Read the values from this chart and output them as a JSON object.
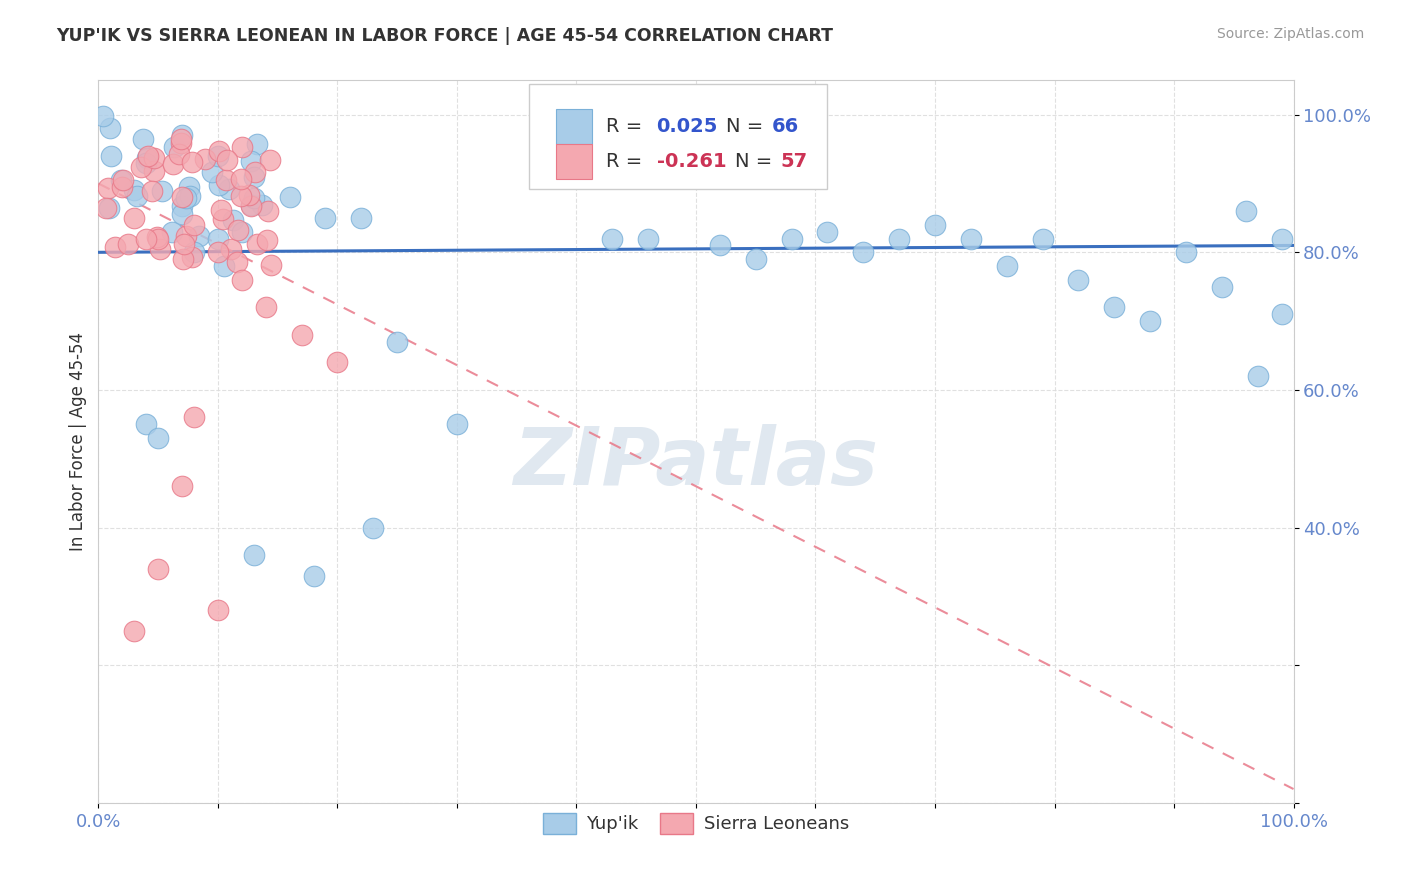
{
  "title": "YUP'IK VS SIERRA LEONEAN IN LABOR FORCE | AGE 45-54 CORRELATION CHART",
  "source": "Source: ZipAtlas.com",
  "ylabel": "In Labor Force | Age 45-54",
  "legend_blue_label": "Yup'ik",
  "legend_pink_label": "Sierra Leoneans",
  "background_color": "#ffffff",
  "blue_color": "#a8cce8",
  "blue_edge_color": "#7ab0d8",
  "pink_color": "#f4a8b0",
  "pink_edge_color": "#e87888",
  "blue_line_color": "#3a6fbf",
  "pink_line_color": "#e87888",
  "watermark": "ZIPatlas",
  "watermark_color": "#e0e8f0",
  "tick_color": "#6688cc",
  "grid_color": "#dddddd",
  "title_color": "#333333",
  "ylabel_color": "#333333",
  "source_color": "#999999",
  "r_blue_color": "#3355cc",
  "n_blue_color": "#3355cc",
  "r_pink_color": "#cc3355",
  "n_pink_color": "#cc3355"
}
